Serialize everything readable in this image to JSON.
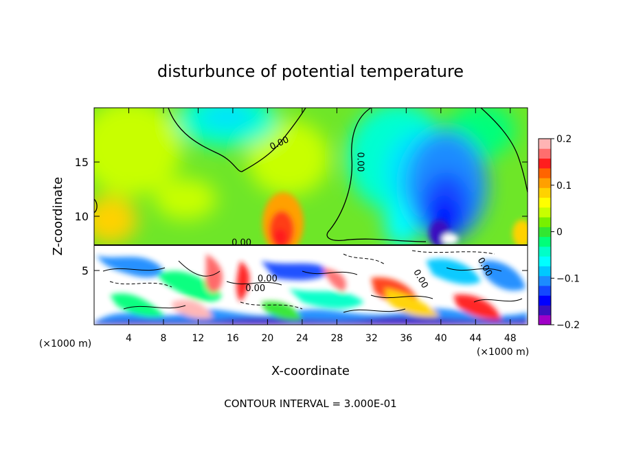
{
  "chart_data": {
    "type": "heatmap",
    "title": "disturbunce of potential temperature",
    "xlabel": "X-coordinate",
    "ylabel": "Z-coordinate",
    "x_unit_left": "(×1000 m)",
    "x_unit_right": "(×1000 m)",
    "footer": "CONTOUR INTERVAL = 3.000E-01",
    "xlim": [
      0,
      50
    ],
    "ylim": [
      0,
      20
    ],
    "x_ticks": [
      4,
      8,
      12,
      16,
      20,
      24,
      28,
      32,
      36,
      40,
      44,
      48
    ],
    "y_ticks": [
      5,
      10,
      15
    ],
    "colorbar": {
      "range": [
        -0.2,
        0.2
      ],
      "ticks": [
        0.2,
        0.1,
        0,
        -0.1,
        -0.2
      ],
      "tick_labels": [
        "0.2",
        "0.1",
        "0",
        "−0.1",
        "−0.2"
      ],
      "colors": [
        "#a000c8",
        "#3a10c0",
        "#0000ff",
        "#1448ff",
        "#1c8cff",
        "#00c8ff",
        "#00ffff",
        "#00ffc8",
        "#00ff7a",
        "#32e632",
        "#78f000",
        "#c8ff00",
        "#ffff00",
        "#ffd200",
        "#ffa000",
        "#ff6400",
        "#ff1e1e",
        "#ff6e6e",
        "#ffb4b4"
      ]
    },
    "contour_labels": [
      {
        "text": "0.00",
        "x": 17.0,
        "z": 7.3
      },
      {
        "text": "0.00",
        "x": 21.5,
        "z": 16.5
      },
      {
        "text": "0.00",
        "x": 30.4,
        "z": 15.0
      },
      {
        "text": "0.00",
        "x": 18.6,
        "z": 3.1
      },
      {
        "text": "0.00",
        "x": 20.0,
        "z": 4.0
      },
      {
        "text": "0.00",
        "x": 37.4,
        "z": 4.1
      },
      {
        "text": "0.00",
        "x": 44.8,
        "z": 5.2
      }
    ]
  }
}
